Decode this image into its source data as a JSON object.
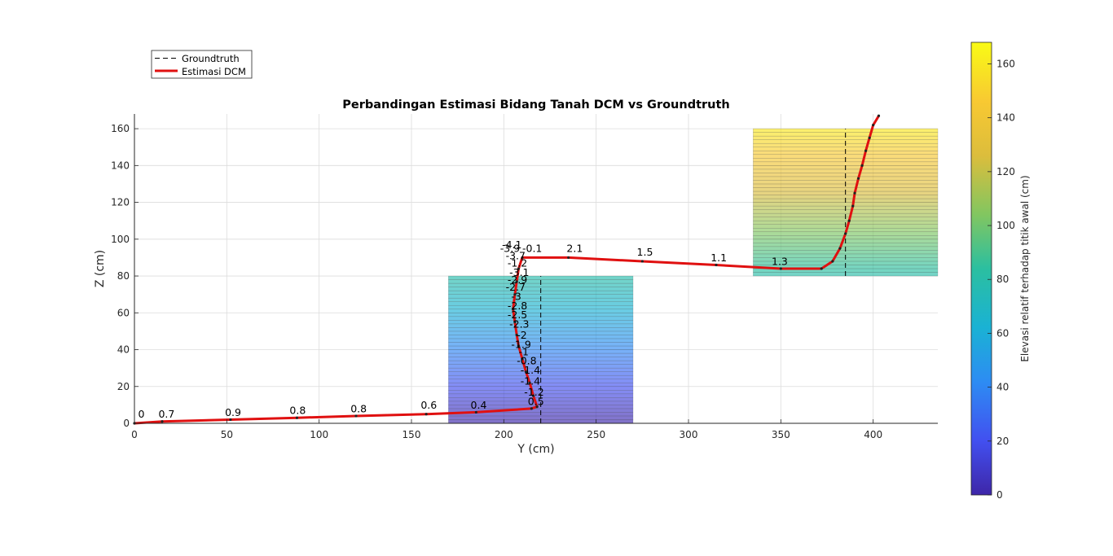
{
  "chart_data": {
    "type": "line",
    "title": "Perbandingan Estimasi Bidang Tanah DCM vs Groundtruth",
    "xlabel": "Y (cm)",
    "ylabel": "Z (cm)",
    "xlim": [
      0,
      435
    ],
    "ylim": [
      0,
      168
    ],
    "xticks": [
      "0",
      "50",
      "100",
      "150",
      "200",
      "250",
      "300",
      "350",
      "400"
    ],
    "yticks": [
      "0",
      "20",
      "40",
      "60",
      "80",
      "100",
      "120",
      "140",
      "160"
    ],
    "grid": true,
    "legend": {
      "placement": "top-left",
      "entries": [
        "Groundtruth",
        "Estimasi DCM"
      ]
    },
    "colorbar": {
      "label": "Elevasi relatif terhadap titik awal (cm)",
      "range": [
        0,
        168
      ],
      "ticks": [
        "0",
        "20",
        "40",
        "60",
        "80",
        "100",
        "120",
        "140",
        "160"
      ]
    },
    "groundtruth_boxes": [
      {
        "y0": 170,
        "y1": 270,
        "z0": 0,
        "z1": 80
      },
      {
        "y0": 335,
        "y1": 436,
        "z0": 80,
        "z1": 160
      }
    ],
    "groundtruth_lines": [
      {
        "y": 220,
        "z0": 0,
        "z1": 80
      },
      {
        "y": 385,
        "z0": 80,
        "z1": 160
      }
    ],
    "estimation": [
      {
        "y": 0,
        "z": 0
      },
      {
        "y": 15,
        "z": 1
      },
      {
        "y": 52,
        "z": 2
      },
      {
        "y": 88,
        "z": 3
      },
      {
        "y": 120,
        "z": 4
      },
      {
        "y": 158,
        "z": 5
      },
      {
        "y": 185,
        "z": 6
      },
      {
        "y": 215,
        "z": 8
      },
      {
        "y": 218,
        "z": 9
      },
      {
        "y": 216,
        "z": 15
      },
      {
        "y": 214,
        "z": 22
      },
      {
        "y": 212,
        "z": 28
      },
      {
        "y": 210,
        "z": 35
      },
      {
        "y": 208,
        "z": 42
      },
      {
        "y": 207,
        "z": 48
      },
      {
        "y": 206,
        "z": 55
      },
      {
        "y": 205,
        "z": 62
      },
      {
        "y": 206,
        "z": 70
      },
      {
        "y": 207,
        "z": 77
      },
      {
        "y": 208,
        "z": 84
      },
      {
        "y": 210,
        "z": 90
      },
      {
        "y": 235,
        "z": 90
      },
      {
        "y": 275,
        "z": 88
      },
      {
        "y": 315,
        "z": 86
      },
      {
        "y": 350,
        "z": 84
      },
      {
        "y": 372,
        "z": 84
      },
      {
        "y": 378,
        "z": 88
      },
      {
        "y": 382,
        "z": 95
      },
      {
        "y": 385,
        "z": 103
      },
      {
        "y": 387,
        "z": 110
      },
      {
        "y": 389,
        "z": 118
      },
      {
        "y": 390,
        "z": 125
      },
      {
        "y": 392,
        "z": 133
      },
      {
        "y": 394,
        "z": 140
      },
      {
        "y": 396,
        "z": 148
      },
      {
        "y": 398,
        "z": 155
      },
      {
        "y": 400,
        "z": 162
      },
      {
        "y": 403,
        "z": 167
      }
    ],
    "segment_labels": [
      {
        "y": 2,
        "z": 3,
        "text": "0"
      },
      {
        "y": 13,
        "z": 3,
        "text": "0.7"
      },
      {
        "y": 49,
        "z": 4,
        "text": "0.9"
      },
      {
        "y": 84,
        "z": 5,
        "text": "0.8"
      },
      {
        "y": 117,
        "z": 6,
        "text": "0.8"
      },
      {
        "y": 155,
        "z": 8,
        "text": "0.6"
      },
      {
        "y": 182,
        "z": 8,
        "text": "0.4"
      },
      {
        "y": 213,
        "z": 10,
        "text": "0.5"
      },
      {
        "y": 211,
        "z": 15,
        "text": "-1.2"
      },
      {
        "y": 209,
        "z": 21,
        "text": "-1.4"
      },
      {
        "y": 209,
        "z": 27,
        "text": "-1.4"
      },
      {
        "y": 207,
        "z": 32,
        "text": "-0.8"
      },
      {
        "y": 208,
        "z": 37,
        "text": "-1"
      },
      {
        "y": 204,
        "z": 41,
        "text": "-1.9"
      },
      {
        "y": 207,
        "z": 46,
        "text": "-2"
      },
      {
        "y": 203,
        "z": 52,
        "text": "-2.3"
      },
      {
        "y": 202,
        "z": 57,
        "text": "-2.5"
      },
      {
        "y": 202,
        "z": 62,
        "text": "-2.8"
      },
      {
        "y": 204,
        "z": 67,
        "text": "-3"
      },
      {
        "y": 201,
        "z": 72,
        "text": "-2.7"
      },
      {
        "y": 202,
        "z": 76,
        "text": "-2.9"
      },
      {
        "y": 203,
        "z": 80,
        "text": "-3.1"
      },
      {
        "y": 202,
        "z": 85,
        "text": "-1.2"
      },
      {
        "y": 201,
        "z": 89,
        "text": "-3.7"
      },
      {
        "y": 198,
        "z": 93,
        "text": "-3.9"
      },
      {
        "y": 210,
        "z": 93,
        "text": "-0.1"
      },
      {
        "y": 199,
        "z": 95,
        "text": "-4.1"
      },
      {
        "y": 234,
        "z": 93,
        "text": "2.1"
      },
      {
        "y": 272,
        "z": 91,
        "text": "1.5"
      },
      {
        "y": 312,
        "z": 88,
        "text": "1.1"
      },
      {
        "y": 345,
        "z": 86,
        "text": "1.3"
      }
    ]
  }
}
